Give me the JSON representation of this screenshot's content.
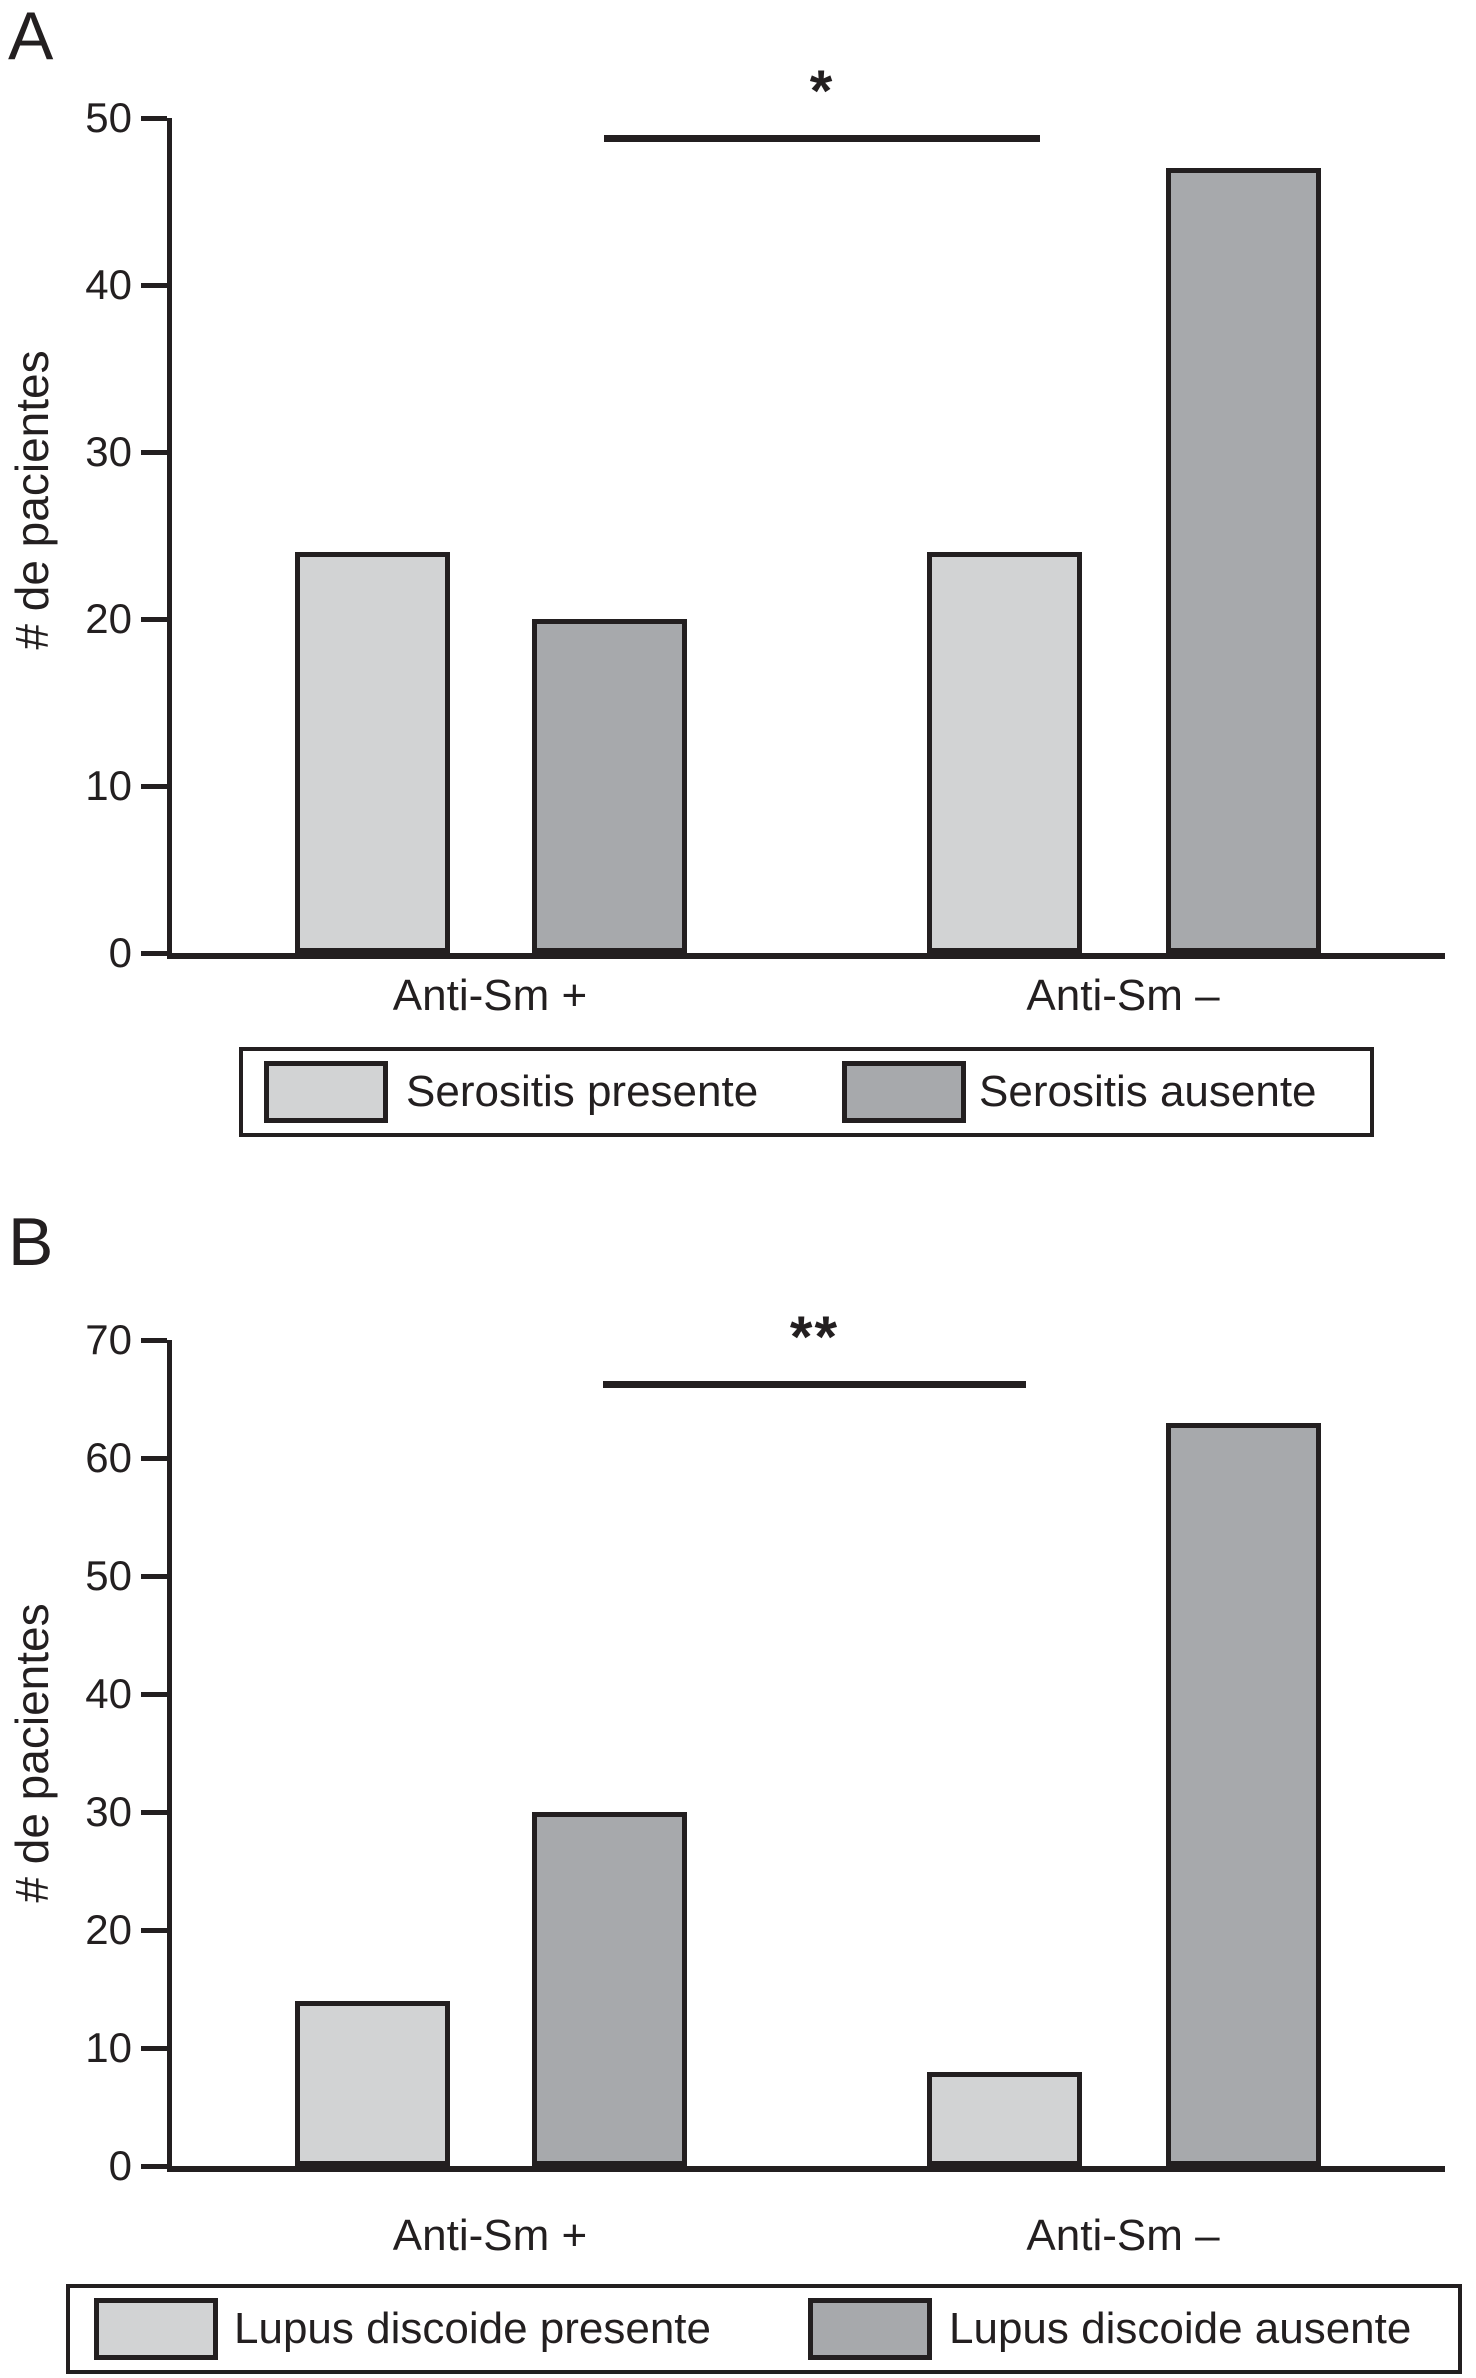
{
  "figure_texts": {
    "panel_a_label": "A",
    "panel_b_label": "B"
  },
  "colors": {
    "ink": "#231f20",
    "background": "#ffffff",
    "light_fill": "#d2d3d4",
    "dark_fill": "#a7a9ac"
  },
  "chart_data": [
    {
      "type": "bar",
      "panel": "A",
      "ylabel": "# de pacientes",
      "xlabel": "",
      "ylim": [
        0,
        50
      ],
      "yticks": [
        0,
        10,
        20,
        30,
        40,
        50
      ],
      "categories": [
        "Anti-Sm +",
        "Anti-Sm –"
      ],
      "series": [
        {
          "name": "Serositis presente",
          "color": "#d2d3d4",
          "values": [
            24,
            24
          ]
        },
        {
          "name": "Serositis ausente",
          "color": "#a7a9ac",
          "values": [
            20,
            47
          ]
        }
      ],
      "annotation": {
        "symbol": "*",
        "y": 49,
        "spans": [
          "Anti-Sm +",
          "Anti-Sm –"
        ]
      },
      "legend_position": "bottom",
      "grid": false
    },
    {
      "type": "bar",
      "panel": "B",
      "ylabel": "# de pacientes",
      "xlabel": "",
      "ylim": [
        0,
        70
      ],
      "yticks": [
        0,
        10,
        20,
        30,
        40,
        50,
        60,
        70
      ],
      "categories": [
        "Anti-Sm +",
        "Anti-Sm –"
      ],
      "series": [
        {
          "name": "Lupus discoide presente",
          "color": "#d2d3d4",
          "values": [
            14,
            8
          ]
        },
        {
          "name": "Lupus discoide ausente",
          "color": "#a7a9ac",
          "values": [
            30,
            63
          ]
        }
      ],
      "annotation": {
        "symbol": "**",
        "y": 66.5,
        "spans": [
          "Anti-Sm +",
          "Anti-Sm –"
        ]
      },
      "legend_position": "bottom",
      "grid": false
    }
  ]
}
